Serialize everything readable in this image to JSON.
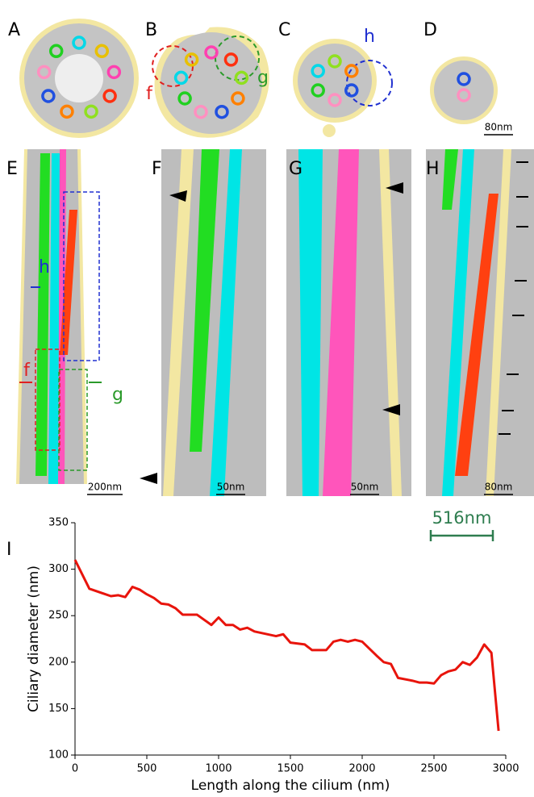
{
  "panels": {
    "labels": [
      "A",
      "B",
      "C",
      "D",
      "E",
      "F",
      "G",
      "H",
      "I"
    ],
    "annotations": [
      "f",
      "g",
      "h",
      "h",
      "f",
      "g"
    ],
    "scale_bars": [
      "80nm",
      "200nm",
      "50nm",
      "50nm",
      "80nm"
    ]
  },
  "chart_data": {
    "type": "line",
    "x": [
      0,
      100,
      250,
      300,
      350,
      400,
      450,
      500,
      550,
      600,
      650,
      700,
      750,
      800,
      850,
      950,
      1000,
      1050,
      1100,
      1150,
      1200,
      1250,
      1400,
      1450,
      1500,
      1600,
      1650,
      1750,
      1800,
      1850,
      1900,
      1950,
      2000,
      2100,
      2150,
      2200,
      2250,
      2350,
      2400,
      2450,
      2500,
      2550,
      2600,
      2650,
      2700,
      2750,
      2800,
      2850,
      2900,
      2950
    ],
    "values": [
      310,
      279,
      271,
      272,
      270,
      281,
      278,
      273,
      269,
      263,
      262,
      258,
      251,
      251,
      251,
      240,
      248,
      240,
      240,
      235,
      237,
      233,
      228,
      230,
      221,
      219,
      213,
      213,
      222,
      224,
      222,
      224,
      222,
      207,
      200,
      198,
      183,
      180,
      178,
      178,
      177,
      186,
      190,
      192,
      200,
      197,
      205,
      219,
      210,
      126
    ],
    "color": "#e8140c",
    "xlim": [
      0,
      3000
    ],
    "xticks": [
      0,
      500,
      1000,
      1500,
      2000,
      2500,
      3000
    ],
    "ylim": [
      100,
      350
    ],
    "yticks": [
      100,
      150,
      200,
      250,
      300,
      350
    ],
    "x_label": "Length along the cilium (nm)",
    "y_label": "Ciliary diameter (nm)",
    "annotation": "516nm",
    "annotation_color": "#2e7d4f"
  }
}
